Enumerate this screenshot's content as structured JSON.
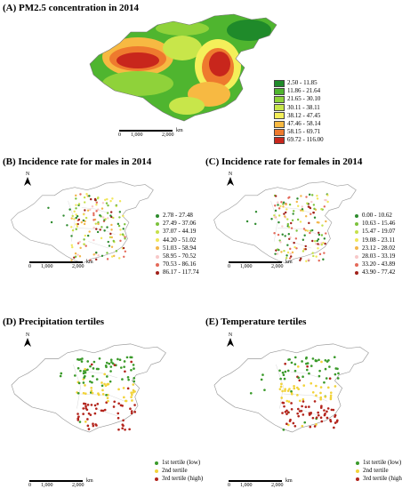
{
  "panelA": {
    "title": "(A) PM2.5 concentration in 2014",
    "legend": [
      {
        "label": "2.50 - 11.85",
        "color": "#1f8a2a"
      },
      {
        "label": "11.86 - 21.64",
        "color": "#4fb52f"
      },
      {
        "label": "21.65 - 30.10",
        "color": "#8fd23a"
      },
      {
        "label": "30.11 - 38.11",
        "color": "#c8e64a"
      },
      {
        "label": "38.12 - 47.45",
        "color": "#f4ef5a"
      },
      {
        "label": "47.46 - 58.14",
        "color": "#f7b942"
      },
      {
        "label": "58.15 - 69.71",
        "color": "#ee7a2e"
      },
      {
        "label": "69.72 - 116.00",
        "color": "#c8261c"
      }
    ],
    "scale": {
      "zero": "0",
      "mid": "1,000",
      "max": "2,000",
      "unit": "km"
    }
  },
  "panelB": {
    "title": "(B) Incidence rate for males in 2014",
    "north": "N",
    "legend": [
      {
        "label": "2.78 - 27.48",
        "color": "#2e8b2e"
      },
      {
        "label": "27.49 - 37.06",
        "color": "#7cc23c"
      },
      {
        "label": "37.07 - 44.19",
        "color": "#c6e04a"
      },
      {
        "label": "44.20 - 51.02",
        "color": "#f1e65a"
      },
      {
        "label": "51.03 - 58.94",
        "color": "#f3b64a"
      },
      {
        "label": "58.95 - 70.52",
        "color": "#f8c8c8"
      },
      {
        "label": "70.53 - 86.16",
        "color": "#e46a5a"
      },
      {
        "label": "86.17 - 117.74",
        "color": "#a1201a"
      }
    ],
    "scale": {
      "zero": "0",
      "mid": "1,000",
      "max": "2,000",
      "unit": "km"
    }
  },
  "panelC": {
    "title": "(C) Incidence rate for females in 2014",
    "north": "N",
    "legend": [
      {
        "label": "0.00 - 10.62",
        "color": "#2e8b2e"
      },
      {
        "label": "10.63 - 15.46",
        "color": "#7cc23c"
      },
      {
        "label": "15.47 - 19.07",
        "color": "#c6e04a"
      },
      {
        "label": "19.08 - 23.11",
        "color": "#f1e65a"
      },
      {
        "label": "23.12 - 28.02",
        "color": "#f3b64a"
      },
      {
        "label": "28.03 - 33.19",
        "color": "#f8c8c8"
      },
      {
        "label": "33.20 - 43.89",
        "color": "#e46a5a"
      },
      {
        "label": "43.90 - 77.42",
        "color": "#a1201a"
      }
    ],
    "scale": {
      "zero": "0",
      "mid": "1,000",
      "max": "2,000",
      "unit": "km"
    }
  },
  "panelD": {
    "title": "(D) Precipitation tertiles",
    "north": "N",
    "legend": [
      {
        "label": "1st tertile (low)",
        "color": "#3a9a2a"
      },
      {
        "label": "2nd tertile",
        "color": "#f2d33a"
      },
      {
        "label": "3rd tertile (high)",
        "color": "#b3241c"
      }
    ],
    "scale": {
      "zero": "0",
      "mid": "1,000",
      "max": "2,000",
      "unit": "km"
    }
  },
  "panelE": {
    "title": "(E) Temperature tertiles",
    "north": "N",
    "legend": [
      {
        "label": "1st tertile (low)",
        "color": "#3a9a2a"
      },
      {
        "label": "2nd tertile",
        "color": "#f2d33a"
      },
      {
        "label": "3rd tertile (high)",
        "color": "#b3241c"
      }
    ],
    "scale": {
      "zero": "0",
      "mid": "1,000",
      "max": "2,000",
      "unit": "km"
    }
  },
  "colors": {
    "outline": "#9a9a9a",
    "water": "#ffffff"
  }
}
